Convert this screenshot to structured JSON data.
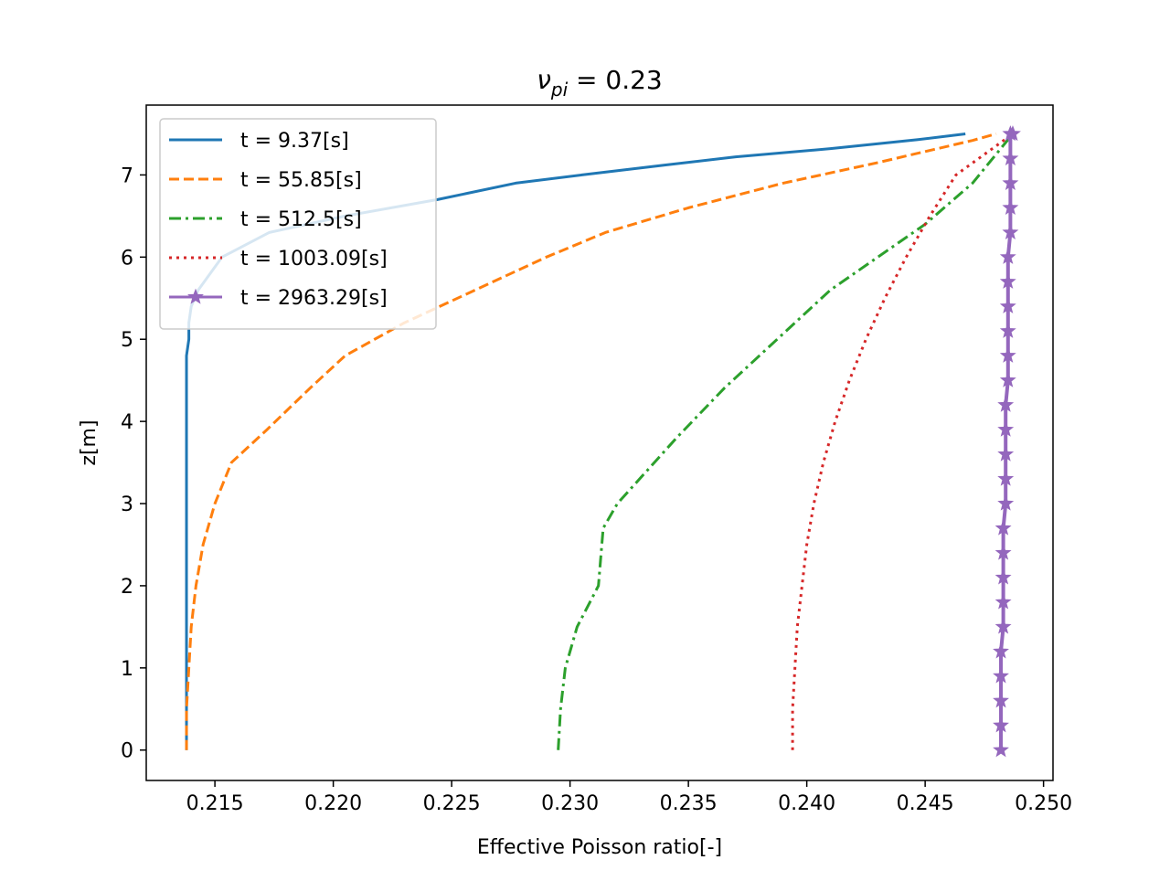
{
  "chart_data": {
    "type": "line",
    "title": {
      "symbol": "ν",
      "subscript": "pi",
      "equals": " = ",
      "value": "0.23"
    },
    "xlabel": "Effective Poisson ratio[-]",
    "ylabel": "z[m]",
    "xlim": [
      0.2121,
      0.2504
    ],
    "ylim": [
      -0.37,
      7.85
    ],
    "x_ticks": [
      0.215,
      0.22,
      0.225,
      0.23,
      0.235,
      0.24,
      0.245,
      0.25
    ],
    "x_tick_labels": [
      "0.215",
      "0.220",
      "0.225",
      "0.230",
      "0.235",
      "0.240",
      "0.245",
      "0.250"
    ],
    "y_ticks": [
      0,
      1,
      2,
      3,
      4,
      5,
      6,
      7
    ],
    "y_tick_labels": [
      "0",
      "1",
      "2",
      "3",
      "4",
      "5",
      "6",
      "7"
    ],
    "grid": false,
    "legend_position": "top-left",
    "series": [
      {
        "name": "t = 9.37[s]",
        "color": "#1f77b4",
        "linestyle": "solid",
        "marker": "none",
        "x": [
          0.2138,
          0.2138,
          0.2138,
          0.2138,
          0.2138,
          0.2138,
          0.2138,
          0.2138,
          0.2138,
          0.2138,
          0.2138,
          0.2139,
          0.2139,
          0.214,
          0.2143,
          0.2153,
          0.2173,
          0.2205,
          0.2244,
          0.2277,
          0.2305,
          0.234,
          0.237,
          0.241,
          0.2447,
          0.2467
        ],
        "y": [
          0,
          0.5,
          1.0,
          1.5,
          2.0,
          2.5,
          3.0,
          3.5,
          4.0,
          4.5,
          4.8,
          5.0,
          5.2,
          5.4,
          5.6,
          6.0,
          6.3,
          6.5,
          6.7,
          6.9,
          7.0,
          7.12,
          7.22,
          7.32,
          7.43,
          7.5
        ]
      },
      {
        "name": "t = 55.85[s]",
        "color": "#ff7f0e",
        "linestyle": "dashed",
        "marker": "none",
        "x": [
          0.2138,
          0.2138,
          0.2139,
          0.214,
          0.2142,
          0.2145,
          0.215,
          0.2157,
          0.2172,
          0.219,
          0.2205,
          0.223,
          0.226,
          0.229,
          0.2315,
          0.235,
          0.239,
          0.243,
          0.247,
          0.248
        ],
        "y": [
          0,
          0.5,
          1.0,
          1.5,
          2.0,
          2.5,
          3.0,
          3.5,
          3.9,
          4.4,
          4.8,
          5.2,
          5.6,
          6.0,
          6.3,
          6.6,
          6.9,
          7.15,
          7.42,
          7.5
        ]
      },
      {
        "name": "t = 512.5[s]",
        "color": "#2ca02c",
        "linestyle": "dashdot",
        "marker": "none",
        "x": [
          0.2295,
          0.2296,
          0.2298,
          0.2303,
          0.2312,
          0.2314,
          0.232,
          0.2345,
          0.2355,
          0.2365,
          0.238,
          0.2395,
          0.241,
          0.243,
          0.245,
          0.247,
          0.2487
        ],
        "y": [
          0,
          0.5,
          1.0,
          1.5,
          2.0,
          2.7,
          3.0,
          3.8,
          4.1,
          4.4,
          4.8,
          5.2,
          5.6,
          6.0,
          6.4,
          6.9,
          7.5
        ]
      },
      {
        "name": "t = 1003.09[s]",
        "color": "#d62728",
        "linestyle": "dotted",
        "marker": "none",
        "x": [
          0.2394,
          0.2394,
          0.2395,
          0.2396,
          0.2398,
          0.24,
          0.2403,
          0.2407,
          0.2412,
          0.2418,
          0.2425,
          0.2433,
          0.2442,
          0.2452,
          0.2463,
          0.2475,
          0.2487
        ],
        "y": [
          0,
          0.5,
          1.0,
          1.5,
          2.0,
          2.5,
          3.0,
          3.5,
          4.0,
          4.5,
          5.0,
          5.5,
          6.0,
          6.5,
          7.0,
          7.25,
          7.5
        ]
      },
      {
        "name": "t = 2963.29[s]",
        "color": "#9467bd",
        "linestyle": "solid",
        "marker": "star",
        "x": [
          0.2482,
          0.2482,
          0.2482,
          0.2482,
          0.2482,
          0.2483,
          0.2483,
          0.2483,
          0.2483,
          0.2483,
          0.2484,
          0.2484,
          0.2484,
          0.2484,
          0.2484,
          0.2485,
          0.2485,
          0.2485,
          0.2485,
          0.2485,
          0.2485,
          0.2486,
          0.2486,
          0.2486,
          0.2486,
          0.2486,
          0.2487
        ],
        "y": [
          0,
          0.3,
          0.6,
          0.9,
          1.2,
          1.5,
          1.8,
          2.1,
          2.4,
          2.7,
          3.0,
          3.3,
          3.6,
          3.9,
          4.2,
          4.5,
          4.8,
          5.1,
          5.4,
          5.7,
          6.0,
          6.3,
          6.6,
          6.9,
          7.2,
          7.5,
          7.5
        ]
      }
    ]
  }
}
